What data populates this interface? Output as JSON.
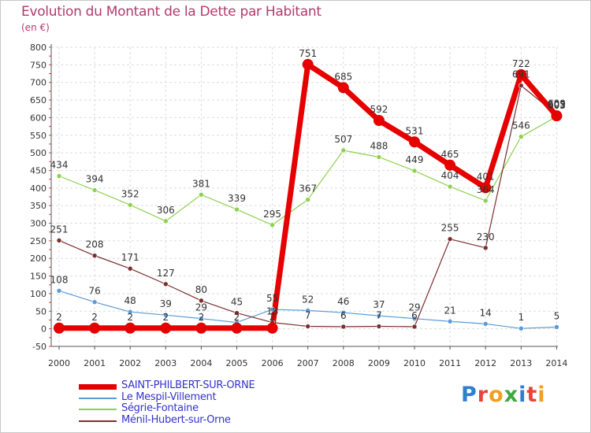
{
  "title": "Evolution du Montant de la Dette par Habitant",
  "unit_label": "(en €)",
  "brand_letters": [
    "P",
    "r",
    "o",
    "x",
    "i",
    "t",
    "i"
  ],
  "brand_colors": [
    "#2f7fd0",
    "#e8443a",
    "#f0a020",
    "#3fa83f",
    "#2f7fd0",
    "#e8443a",
    "#f0a020"
  ],
  "chart_data": {
    "type": "line",
    "x": [
      "2000",
      "2001",
      "2002",
      "2003",
      "2004",
      "2005",
      "2006",
      "2007",
      "2008",
      "2009",
      "2010",
      "2011",
      "2012",
      "2013",
      "2014"
    ],
    "ylim": [
      -50,
      800
    ],
    "yticks": [
      -50,
      0,
      50,
      100,
      150,
      200,
      250,
      300,
      350,
      400,
      450,
      500,
      550,
      600,
      650,
      700,
      750,
      800
    ],
    "grid": true,
    "legend_position": "bottom-left",
    "series": [
      {
        "name": "Le Mespil-Villement",
        "color": "#5b9bd5",
        "width": 1.2,
        "marker": 3,
        "values": [
          108,
          76,
          48,
          39,
          29,
          18,
          55,
          52,
          46,
          37,
          29,
          21,
          14,
          1,
          5
        ],
        "labels": [
          "108",
          "76",
          "48",
          "39",
          "29",
          "",
          "55",
          "52",
          "46",
          "37",
          "29",
          "21",
          "14",
          "1",
          "5"
        ]
      },
      {
        "name": "Ségrie-Fontaine",
        "color": "#8fd14f",
        "width": 1.2,
        "marker": 3,
        "values": [
          434,
          394,
          352,
          306,
          381,
          339,
          295,
          367,
          507,
          488,
          449,
          404,
          364,
          546,
          603
        ],
        "labels": [
          "434",
          "394",
          "352",
          "306",
          "381",
          "339",
          "295",
          "367",
          "507",
          "488",
          "449",
          "404",
          "364",
          "546",
          "603"
        ]
      },
      {
        "name": "Ménil-Hubert-sur-Orne",
        "color": "#7b2e2e",
        "width": 1.2,
        "marker": 3,
        "values": [
          251,
          208,
          171,
          127,
          80,
          45,
          18,
          7,
          6,
          7,
          6,
          255,
          230,
          691,
          609
        ],
        "labels": [
          "251",
          "208",
          "171",
          "127",
          "80",
          "45",
          "18",
          "7",
          "6",
          "7",
          "6",
          "255",
          "230",
          "691",
          "609"
        ]
      },
      {
        "name": "SAINT-PHILBERT-SUR-ORNE",
        "color": "#e60000",
        "width": 7,
        "marker": 7,
        "values": [
          2,
          2,
          2,
          2,
          2,
          2,
          2,
          751,
          685,
          592,
          531,
          465,
          401,
          722,
          605
        ],
        "labels": [
          "2",
          "2",
          "2",
          "2",
          "2",
          "2",
          "2",
          "751",
          "685",
          "592",
          "531",
          "465",
          "401",
          "722",
          "605"
        ]
      }
    ]
  },
  "legend_order": [
    "SAINT-PHILBERT-SUR-ORNE",
    "Le Mespil-Villement",
    "Ségrie-Fontaine",
    "Ménil-Hubert-sur-Orne"
  ]
}
